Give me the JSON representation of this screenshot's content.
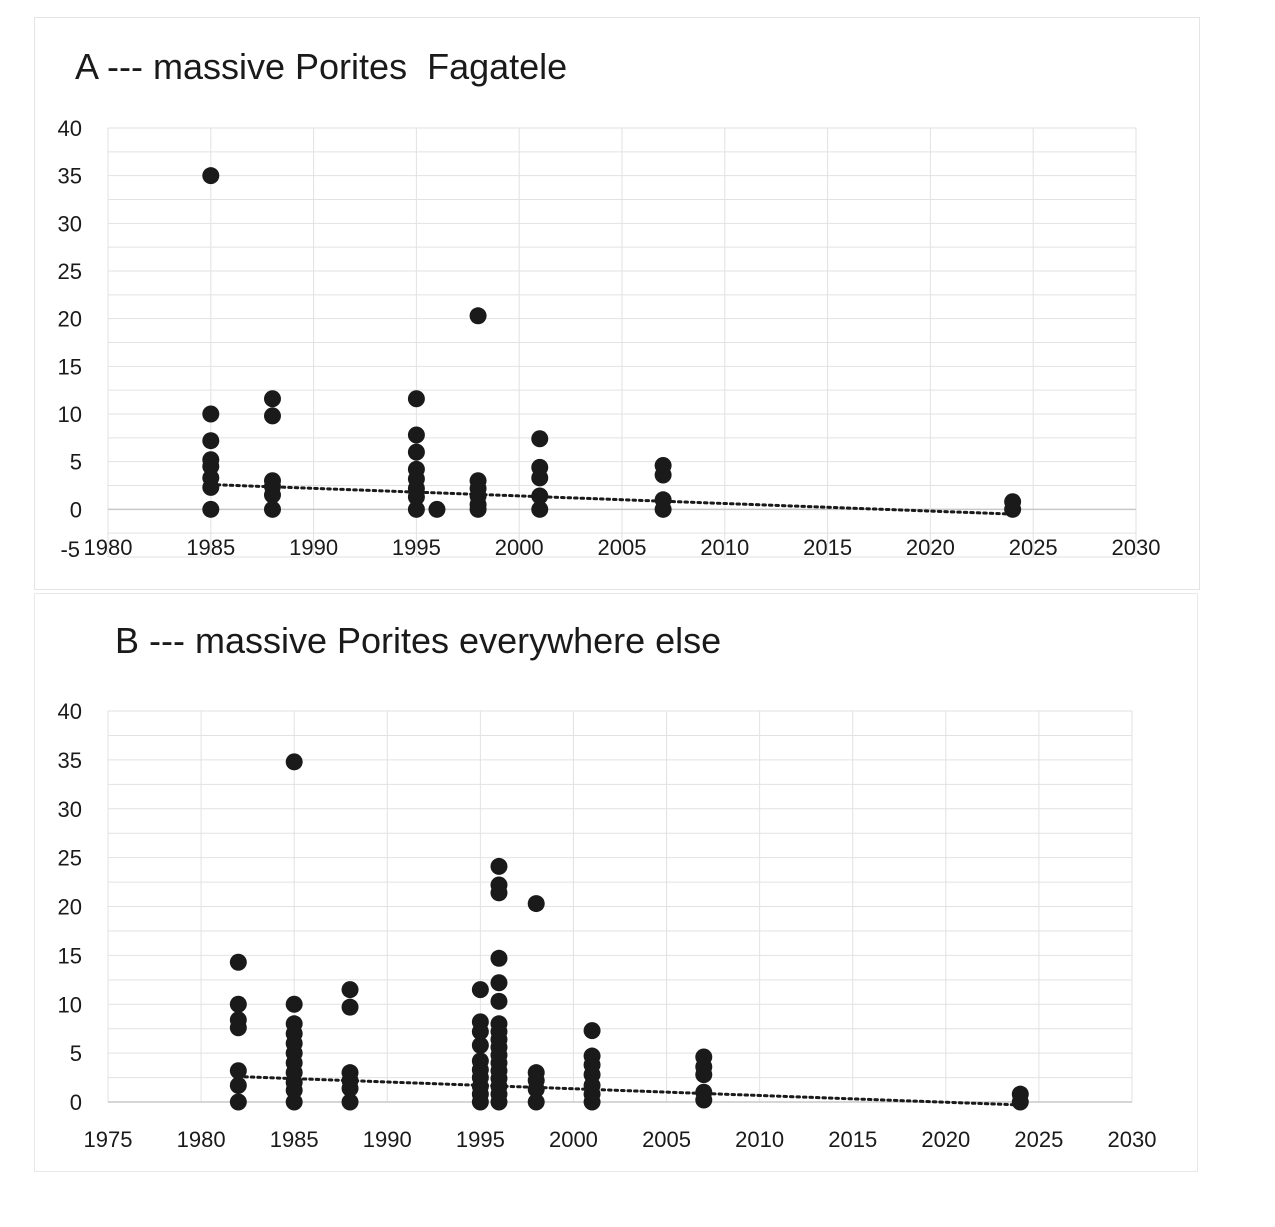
{
  "chart_data": [
    {
      "type": "scatter",
      "title": "A --- massive Porites  Fagatele",
      "xlim": [
        1980,
        2030
      ],
      "ylim": [
        -5,
        40
      ],
      "x_ticks": [
        1980,
        1985,
        1990,
        1995,
        2000,
        2005,
        2010,
        2015,
        2020,
        2025,
        2030
      ],
      "y_ticks": [
        -5,
        0,
        5,
        10,
        15,
        20,
        25,
        30,
        35,
        40
      ],
      "grid": true,
      "legend": "none",
      "marker_color": "#1a1a1a",
      "trendline": {
        "style": "dotted",
        "x": [
          1985,
          2024
        ],
        "y": [
          2.6,
          -0.5
        ]
      },
      "points": [
        [
          1985,
          35
        ],
        [
          1985,
          10
        ],
        [
          1985,
          7.2
        ],
        [
          1985,
          5.2
        ],
        [
          1985,
          4.5
        ],
        [
          1985,
          3.3
        ],
        [
          1985,
          2.3
        ],
        [
          1985,
          0
        ],
        [
          1988,
          11.6
        ],
        [
          1988,
          9.8
        ],
        [
          1988,
          3
        ],
        [
          1988,
          2.4
        ],
        [
          1988,
          1.5
        ],
        [
          1988,
          0
        ],
        [
          1995,
          11.6
        ],
        [
          1995,
          7.8
        ],
        [
          1995,
          6
        ],
        [
          1995,
          4.2
        ],
        [
          1995,
          3.2
        ],
        [
          1995,
          2.2
        ],
        [
          1995,
          1.3
        ],
        [
          1995,
          0
        ],
        [
          1996,
          0
        ],
        [
          1998,
          20.3
        ],
        [
          1998,
          3
        ],
        [
          1998,
          2.2
        ],
        [
          1998,
          1.4
        ],
        [
          1998,
          0.5
        ],
        [
          1998,
          0
        ],
        [
          2001,
          7.4
        ],
        [
          2001,
          4.4
        ],
        [
          2001,
          3.3
        ],
        [
          2001,
          1.4
        ],
        [
          2001,
          0
        ],
        [
          2007,
          4.6
        ],
        [
          2007,
          3.6
        ],
        [
          2007,
          1
        ],
        [
          2007,
          0
        ],
        [
          2024,
          0.8
        ],
        [
          2024,
          0
        ]
      ]
    },
    {
      "type": "scatter",
      "title": "B --- massive Porites everywhere else",
      "xlim": [
        1975,
        2030
      ],
      "ylim": [
        0,
        40
      ],
      "x_ticks": [
        1975,
        1980,
        1985,
        1990,
        1995,
        2000,
        2005,
        2010,
        2015,
        2020,
        2025,
        2030
      ],
      "y_ticks": [
        0,
        5,
        10,
        15,
        20,
        25,
        30,
        35,
        40
      ],
      "grid": true,
      "legend": "none",
      "marker_color": "#1a1a1a",
      "trendline": {
        "style": "dotted",
        "x": [
          1982,
          2024
        ],
        "y": [
          2.6,
          -0.3
        ]
      },
      "points": [
        [
          1982,
          14.3
        ],
        [
          1982,
          10
        ],
        [
          1982,
          8.4
        ],
        [
          1982,
          7.6
        ],
        [
          1982,
          3.2
        ],
        [
          1982,
          1.7
        ],
        [
          1982,
          0
        ],
        [
          1985,
          34.8
        ],
        [
          1985,
          10
        ],
        [
          1985,
          8
        ],
        [
          1985,
          7
        ],
        [
          1985,
          6
        ],
        [
          1985,
          5
        ],
        [
          1985,
          4
        ],
        [
          1985,
          3
        ],
        [
          1985,
          2
        ],
        [
          1985,
          1.2
        ],
        [
          1985,
          0
        ],
        [
          1988,
          11.5
        ],
        [
          1988,
          9.7
        ],
        [
          1988,
          3
        ],
        [
          1988,
          2.2
        ],
        [
          1988,
          1.4
        ],
        [
          1988,
          0
        ],
        [
          1995,
          11.5
        ],
        [
          1995,
          8.2
        ],
        [
          1995,
          7.2
        ],
        [
          1995,
          5.8
        ],
        [
          1995,
          4.2
        ],
        [
          1995,
          3.3
        ],
        [
          1995,
          2.5
        ],
        [
          1995,
          1.6
        ],
        [
          1995,
          0.8
        ],
        [
          1995,
          0
        ],
        [
          1996,
          24.1
        ],
        [
          1996,
          22.2
        ],
        [
          1996,
          21.4
        ],
        [
          1996,
          14.7
        ],
        [
          1996,
          12.2
        ],
        [
          1996,
          10.3
        ],
        [
          1996,
          8
        ],
        [
          1996,
          7.2
        ],
        [
          1996,
          6.4
        ],
        [
          1996,
          5.6
        ],
        [
          1996,
          4.8
        ],
        [
          1996,
          4
        ],
        [
          1996,
          3.2
        ],
        [
          1996,
          2.4
        ],
        [
          1996,
          1.6
        ],
        [
          1996,
          0.8
        ],
        [
          1996,
          0
        ],
        [
          1998,
          20.3
        ],
        [
          1998,
          3
        ],
        [
          1998,
          2.2
        ],
        [
          1998,
          1.3
        ],
        [
          1998,
          0
        ],
        [
          2001,
          7.3
        ],
        [
          2001,
          4.7
        ],
        [
          2001,
          3.8
        ],
        [
          2001,
          2.8
        ],
        [
          2001,
          1.7
        ],
        [
          2001,
          0.8
        ],
        [
          2001,
          0
        ],
        [
          2007,
          4.6
        ],
        [
          2007,
          3.6
        ],
        [
          2007,
          2.8
        ],
        [
          2007,
          1
        ],
        [
          2007,
          0.2
        ],
        [
          2024,
          0.8
        ],
        [
          2024,
          0
        ]
      ]
    }
  ]
}
